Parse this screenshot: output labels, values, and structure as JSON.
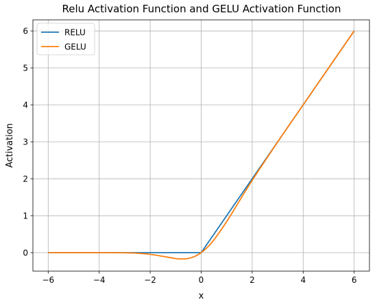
{
  "chart_data": {
    "type": "line",
    "title": "Relu Activation Function and GELU Activation Function",
    "xlabel": "x",
    "ylabel": "Activation",
    "xlim": [
      -6.6,
      6.6
    ],
    "ylim": [
      -0.5,
      6.3
    ],
    "xticks": [
      -6,
      -4,
      -2,
      0,
      2,
      4,
      6
    ],
    "yticks": [
      0,
      1,
      2,
      3,
      4,
      5,
      6
    ],
    "xtick_labels": [
      "−6",
      "−4",
      "−2",
      "0",
      "2",
      "4",
      "6"
    ],
    "ytick_labels": [
      "0",
      "1",
      "2",
      "3",
      "4",
      "5",
      "6"
    ],
    "grid": true,
    "legend_position": "top-left",
    "series": [
      {
        "name": "RELU",
        "color": "#1f77b4",
        "x": [
          -6,
          0,
          6
        ],
        "y": [
          0,
          0,
          6
        ]
      },
      {
        "name": "GELU",
        "color": "#ff7f0e",
        "x": [
          -6,
          -4,
          -3,
          -2.5,
          -2,
          -1.5,
          -1,
          -0.75,
          -0.5,
          -0.25,
          0,
          0.25,
          0.5,
          1,
          1.5,
          2,
          3,
          4,
          6
        ],
        "y": [
          0,
          0,
          -0.004,
          -0.016,
          -0.046,
          -0.1,
          -0.159,
          -0.17,
          -0.154,
          -0.1,
          0,
          0.15,
          0.346,
          0.841,
          1.4,
          1.955,
          2.996,
          4,
          6
        ]
      }
    ]
  }
}
